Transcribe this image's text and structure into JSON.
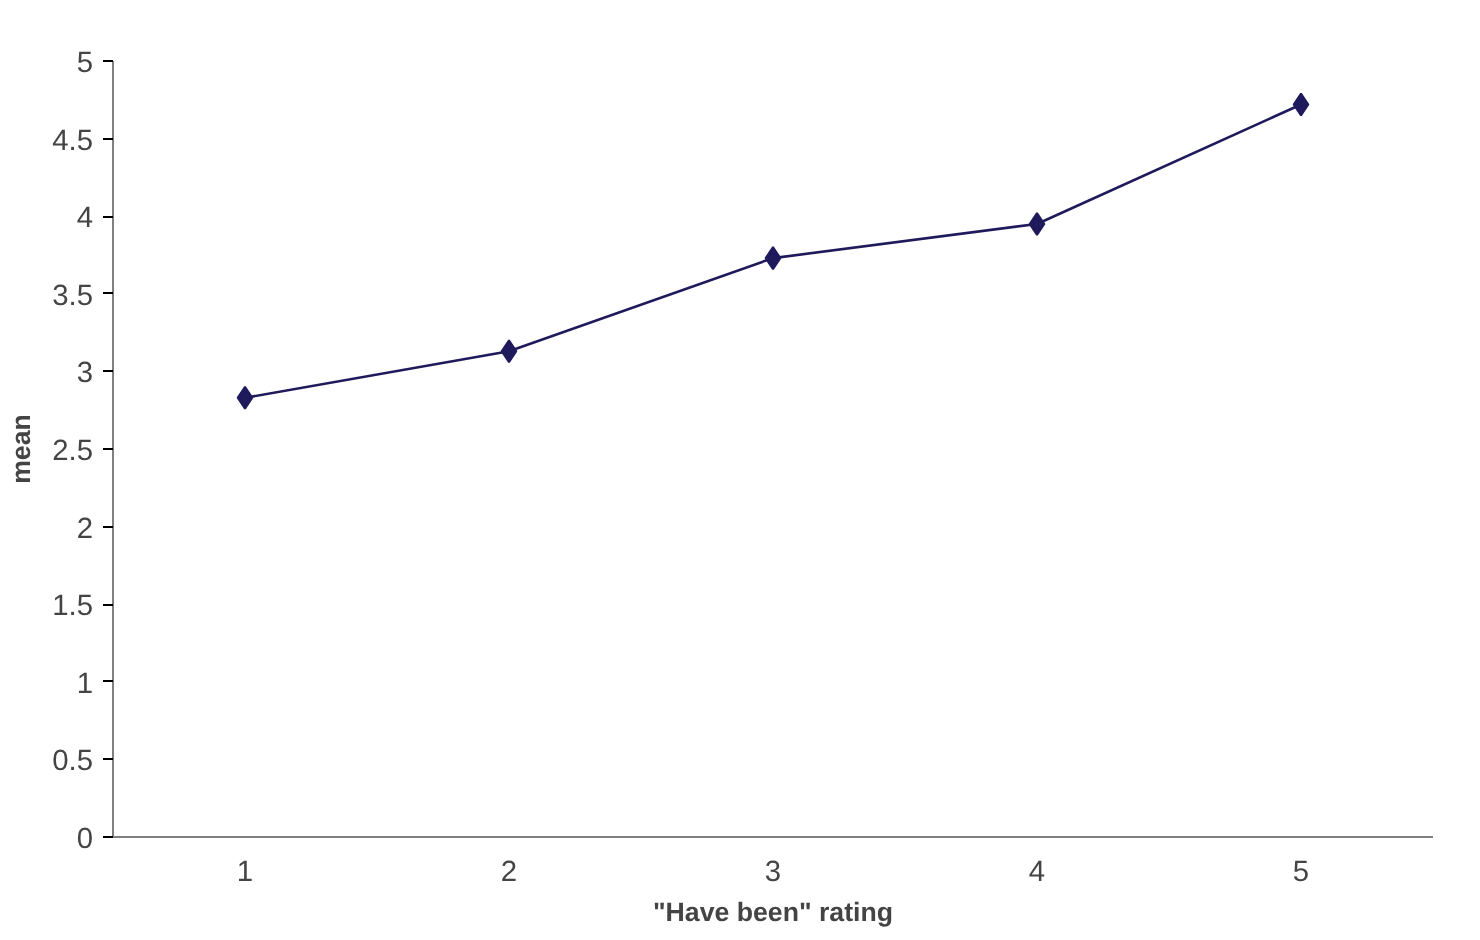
{
  "chart_data": {
    "type": "line",
    "xlabel": "\"Have been\" rating",
    "ylabel": "mean",
    "categories": [
      "1",
      "2",
      "3",
      "4",
      "5"
    ],
    "series": [
      {
        "color": "#1f1a5c",
        "values": [
          2.83,
          3.13,
          3.73,
          3.95,
          4.72
        ]
      }
    ],
    "ylim": [
      0,
      5
    ],
    "yticks": [
      0,
      0.5,
      1,
      1.5,
      2,
      2.5,
      3,
      3.5,
      4,
      4.5,
      5
    ],
    "grid": false,
    "marker": "diamond",
    "line_style": "solid"
  }
}
